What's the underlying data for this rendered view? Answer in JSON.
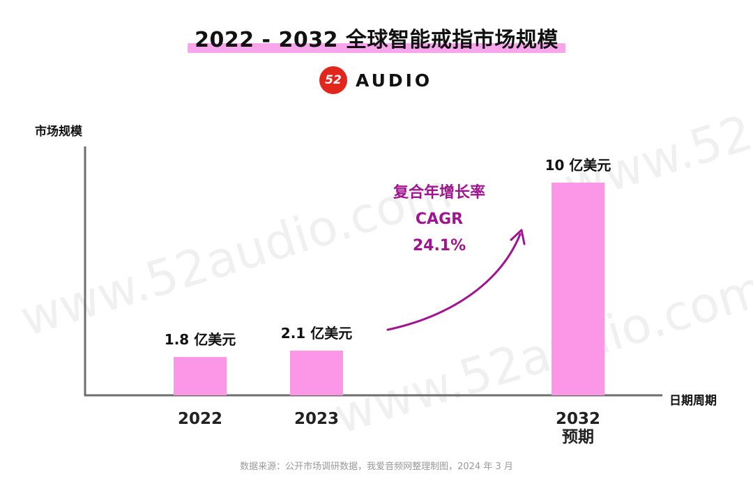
{
  "header": {
    "title": "2022 - 2032 全球智能戒指市场规模",
    "logo_badge": "52",
    "logo_text": "AUDIO"
  },
  "annotation": {
    "line1": "复合年增长率",
    "line2": "CAGR",
    "line3": "24.1%"
  },
  "watermark": {
    "text": "www.52audio.com"
  },
  "footer": {
    "source": "数据来源：公开市场调研数据，我爱音频网整理制图，2024 年 3 月"
  },
  "colors": {
    "bar": "#FC97E7",
    "title_highlight": "#F7A6EC",
    "accent_purple": "#A1148F",
    "logo_red": "#E1261C",
    "axis": "#6E6E6E"
  },
  "chart_data": {
    "type": "bar",
    "title": "2022 - 2032 全球智能戒指市场规模",
    "ylabel": "市场规模",
    "xlabel": "日期周期",
    "unit": "亿美元",
    "categories": [
      "2022",
      "2023",
      "2032"
    ],
    "category_sublabels": [
      "",
      "",
      "预期"
    ],
    "values": [
      1.8,
      2.1,
      10
    ],
    "value_labels": [
      "1.8 亿美元",
      "2.1 亿美元",
      "10 亿美元"
    ],
    "ylim": [
      0,
      11.7
    ],
    "grid": false,
    "legend": "none"
  }
}
